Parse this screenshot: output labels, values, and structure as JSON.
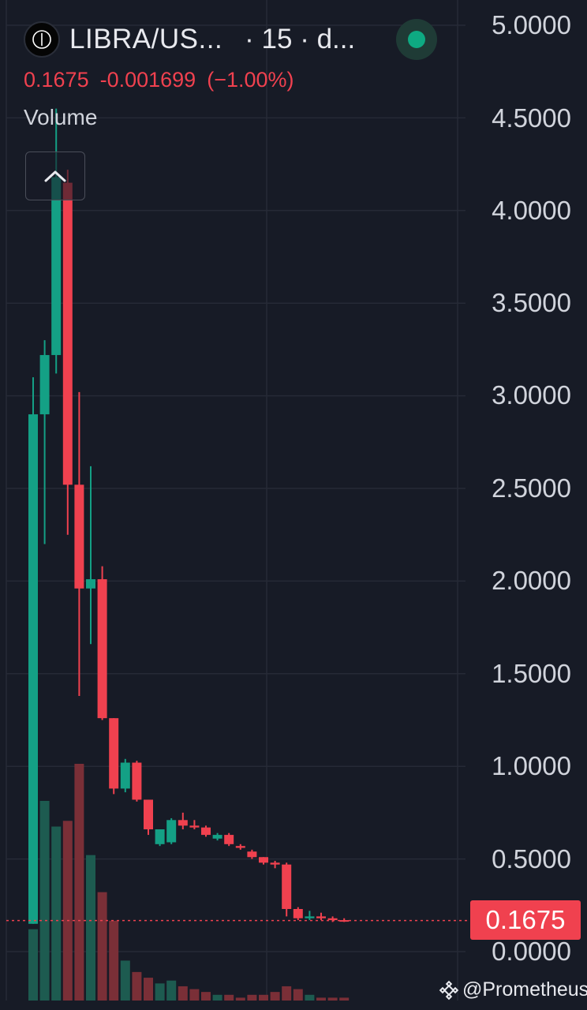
{
  "header": {
    "symbol": "LIBRA/US...",
    "interval": "· 15 · d...",
    "last_price": "0.1675",
    "change": "-0.001699",
    "change_pct": "(−1.00%)",
    "volume_label": "Volume",
    "logo_icon": "libra-logo-icon",
    "status_color": "#0ea982"
  },
  "price_axis": {
    "labels": [
      "5.0000",
      "4.5000",
      "4.0000",
      "3.5000",
      "3.0000",
      "2.5000",
      "2.0000",
      "1.5000",
      "1.0000",
      "0.5000",
      "0.0000"
    ],
    "last_price_tag": "0.1675"
  },
  "watermark": {
    "text": "@Prometheus",
    "icon": "binance-logo-icon"
  },
  "colors": {
    "up": "#14a085",
    "down": "#f0414f",
    "up_volume": "#1d5b50",
    "down_volume": "#7a2f37",
    "background": "#171b26",
    "grid": "#262a36"
  },
  "chart_data": {
    "type": "candlestick",
    "symbol": "LIBRA/US...",
    "ylim": [
      0,
      5
    ],
    "price_ticks": [
      0,
      0.5,
      1,
      1.5,
      2,
      2.5,
      3,
      3.5,
      4,
      4.5,
      5
    ],
    "last_price": 0.1675,
    "candles": [
      {
        "o": 0.15,
        "h": 3.1,
        "l": 0.15,
        "c": 2.9
      },
      {
        "o": 2.9,
        "h": 3.3,
        "l": 2.2,
        "c": 3.22
      },
      {
        "o": 3.22,
        "h": 4.55,
        "l": 3.12,
        "c": 4.18
      },
      {
        "o": 4.15,
        "h": 4.22,
        "l": 2.25,
        "c": 2.52
      },
      {
        "o": 2.52,
        "h": 3.02,
        "l": 1.38,
        "c": 1.96
      },
      {
        "o": 1.96,
        "h": 2.62,
        "l": 1.66,
        "c": 2.01
      },
      {
        "o": 2.01,
        "h": 2.08,
        "l": 1.25,
        "c": 1.26
      },
      {
        "o": 1.26,
        "h": 1.26,
        "l": 0.85,
        "c": 0.88
      },
      {
        "o": 0.88,
        "h": 1.04,
        "l": 0.86,
        "c": 1.02
      },
      {
        "o": 1.02,
        "h": 1.03,
        "l": 0.81,
        "c": 0.82
      },
      {
        "o": 0.82,
        "h": 0.82,
        "l": 0.63,
        "c": 0.66
      },
      {
        "o": 0.58,
        "h": 0.66,
        "l": 0.57,
        "c": 0.66
      },
      {
        "o": 0.59,
        "h": 0.72,
        "l": 0.58,
        "c": 0.71
      },
      {
        "o": 0.71,
        "h": 0.75,
        "l": 0.66,
        "c": 0.68
      },
      {
        "o": 0.68,
        "h": 0.71,
        "l": 0.66,
        "c": 0.67
      },
      {
        "o": 0.67,
        "h": 0.68,
        "l": 0.62,
        "c": 0.63
      },
      {
        "o": 0.61,
        "h": 0.64,
        "l": 0.6,
        "c": 0.63
      },
      {
        "o": 0.63,
        "h": 0.64,
        "l": 0.57,
        "c": 0.58
      },
      {
        "o": 0.57,
        "h": 0.58,
        "l": 0.55,
        "c": 0.56
      },
      {
        "o": 0.54,
        "h": 0.55,
        "l": 0.5,
        "c": 0.51
      },
      {
        "o": 0.51,
        "h": 0.51,
        "l": 0.47,
        "c": 0.48
      },
      {
        "o": 0.48,
        "h": 0.49,
        "l": 0.45,
        "c": 0.47
      },
      {
        "o": 0.47,
        "h": 0.48,
        "l": 0.19,
        "c": 0.23
      },
      {
        "o": 0.23,
        "h": 0.24,
        "l": 0.17,
        "c": 0.18
      },
      {
        "o": 0.18,
        "h": 0.22,
        "l": 0.17,
        "c": 0.19
      },
      {
        "o": 0.19,
        "h": 0.21,
        "l": 0.17,
        "c": 0.18
      },
      {
        "o": 0.18,
        "h": 0.19,
        "l": 0.16,
        "c": 0.17
      },
      {
        "o": 0.17,
        "h": 0.18,
        "l": 0.16,
        "c": 0.1675
      }
    ],
    "volume": [
      0.25,
      0.7,
      0.61,
      0.63,
      0.83,
      0.51,
      0.38,
      0.28,
      0.14,
      0.1,
      0.08,
      0.06,
      0.07,
      0.05,
      0.04,
      0.03,
      0.02,
      0.02,
      0.01,
      0.02,
      0.02,
      0.03,
      0.05,
      0.04,
      0.02,
      0.01,
      0.01,
      0.01
    ]
  }
}
